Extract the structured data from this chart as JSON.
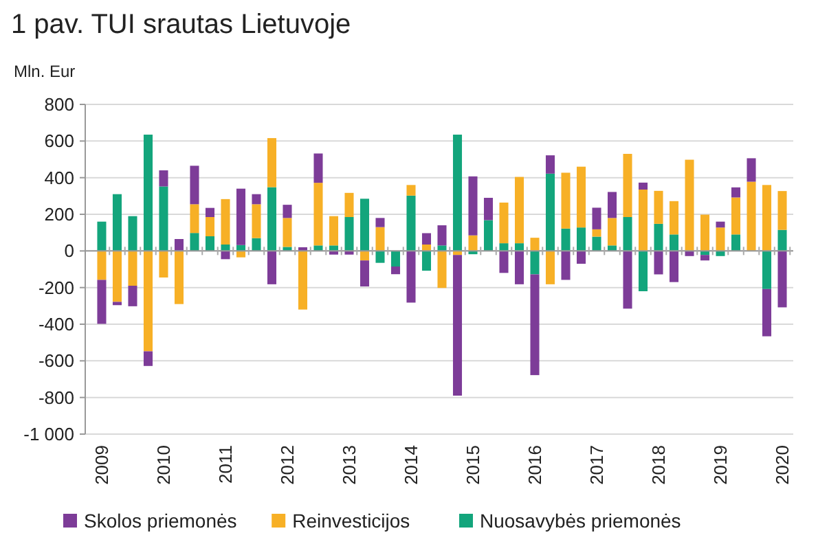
{
  "chart_data": {
    "type": "bar",
    "stacked": true,
    "title": "1 pav. TUI srautas Lietuvoje",
    "ylabel": "Mln. Eur",
    "categories": [
      "2009",
      null,
      null,
      null,
      "2010",
      null,
      null,
      null,
      "2011",
      null,
      null,
      null,
      "2012",
      null,
      null,
      null,
      "2013",
      null,
      null,
      null,
      "2014",
      null,
      null,
      null,
      "2015",
      null,
      null,
      null,
      "2016",
      null,
      null,
      null,
      "2017",
      null,
      null,
      null,
      "2018",
      null,
      null,
      null,
      "2019",
      null,
      null,
      null,
      "2020"
    ],
    "series": [
      {
        "name": "Nuosavybės priemonės",
        "color": "#13a57c",
        "values": [
          160,
          310,
          190,
          635,
          352,
          0,
          98,
          80,
          35,
          32,
          70,
          348,
          22,
          0,
          30,
          30,
          185,
          285,
          -65,
          -85,
          302,
          -108,
          30,
          635,
          -18,
          168,
          42,
          42,
          -128,
          422,
          122,
          128,
          78,
          30,
          185,
          -220,
          148,
          90,
          0,
          -22,
          -28,
          90,
          0,
          -208,
          115
        ]
      },
      {
        "name": "Reinvesticijos",
        "color": "#f7b026",
        "values": [
          -158,
          -278,
          -190,
          -548,
          -145,
          -290,
          157,
          105,
          248,
          -35,
          185,
          268,
          158,
          -320,
          342,
          160,
          132,
          -52,
          130,
          null,
          58,
          35,
          -202,
          -22,
          85,
          0,
          222,
          362,
          72,
          -182,
          305,
          332,
          40,
          150,
          345,
          335,
          180,
          182,
          498,
          198,
          128,
          202,
          378,
          360,
          212
        ]
      },
      {
        "name": "Skolos priemonės",
        "color": "#7d3c98",
        "values": [
          -240,
          -18,
          -112,
          -80,
          88,
          65,
          210,
          50,
          -45,
          308,
          55,
          -182,
          72,
          20,
          160,
          -20,
          -20,
          -142,
          50,
          -42,
          -282,
          62,
          110,
          -768,
          322,
          122,
          -120,
          -182,
          -550,
          100,
          -158,
          -70,
          118,
          142,
          -315,
          38,
          -128,
          -170,
          -28,
          -30,
          32,
          55,
          128,
          -258,
          -308
        ]
      }
    ],
    "ylim": [
      -1000,
      800
    ],
    "yticks": [
      800,
      600,
      400,
      200,
      0,
      -200,
      -400,
      -600,
      -800,
      {
        "value": -1000,
        "label": "-1 000"
      }
    ],
    "grid": "y",
    "legend": "bottom"
  }
}
